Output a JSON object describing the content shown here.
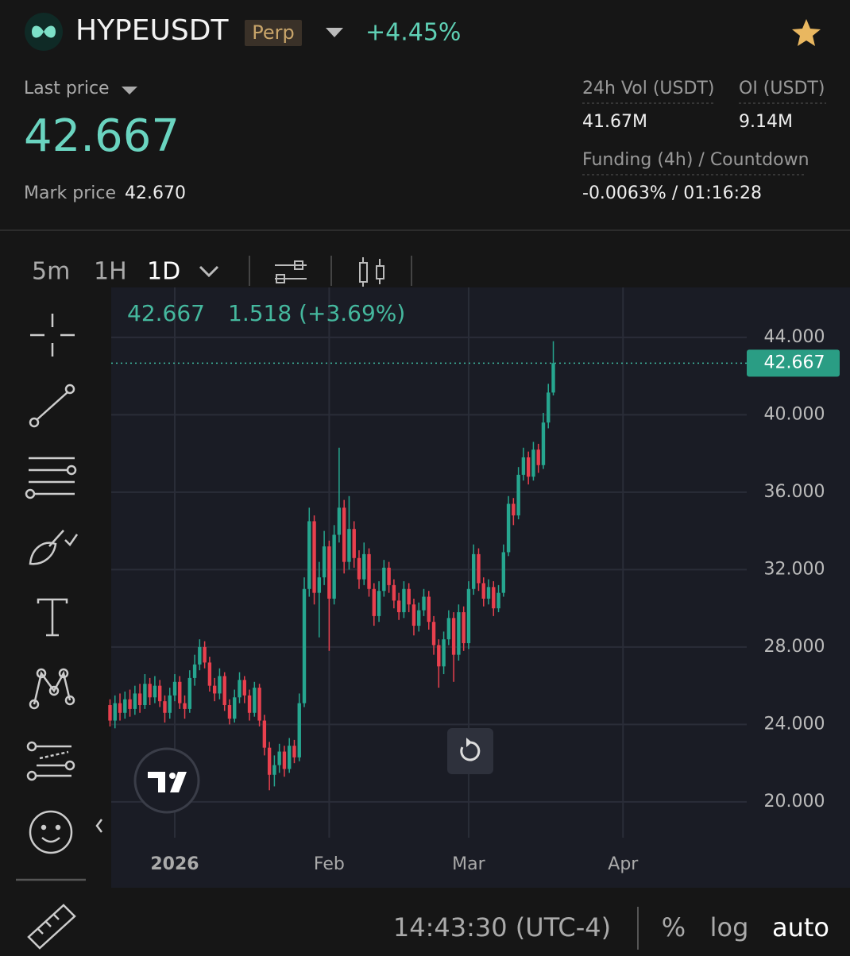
{
  "header": {
    "symbol": "HYPEUSDT",
    "badge": "Perp",
    "change": "+4.45%"
  },
  "price": {
    "last_label": "Last price",
    "last": "42.667",
    "mark_label": "Mark price",
    "mark": "42.670"
  },
  "stats": [
    {
      "label": "24h Vol (USDT)",
      "value": "41.67M"
    },
    {
      "label": "OI (USDT)",
      "value": "9.14M"
    },
    {
      "label": "Funding (4h) / Countdown",
      "value": "-0.0063%  /  01:16:28"
    }
  ],
  "intervals": [
    "5m",
    "1H",
    "1D"
  ],
  "footer": {
    "time": "14:43:30 (UTC-4)",
    "percent": "%",
    "log": "log",
    "auto": "auto"
  },
  "chart_data": {
    "type": "candlestick",
    "legend": {
      "last": "42.667",
      "change": "1.518 (+3.69%)"
    },
    "price_tag": {
      "value": 42.667,
      "label": "42.667"
    },
    "up_color": "#26a68f",
    "down_color": "#e8404e",
    "grid": true,
    "log_scale": false,
    "ylim": [
      18.15,
      46.58
    ],
    "yticks": [
      {
        "value": 20,
        "label": "20.000"
      },
      {
        "value": 24,
        "label": "24.000"
      },
      {
        "value": 28,
        "label": "28.000"
      },
      {
        "value": 32,
        "label": "32.000"
      },
      {
        "value": 36,
        "label": "36.000"
      },
      {
        "value": 40,
        "label": "40.000"
      },
      {
        "value": 44,
        "label": "44.000"
      }
    ],
    "xticks": [
      {
        "value": 13,
        "label": "2026"
      },
      {
        "value": 44,
        "label": "Feb"
      },
      {
        "value": 72,
        "label": "Mar"
      },
      {
        "value": 103,
        "label": "Apr"
      }
    ],
    "open": [
      25.0,
      24.2,
      25.1,
      24.6,
      25.3,
      24.8,
      25.6,
      25.0,
      26.1,
      25.4,
      26.0,
      25.2,
      24.6,
      25.5,
      26.2,
      25.1,
      24.8,
      26.4,
      27.1,
      28.0,
      27.2,
      26.0,
      25.6,
      26.5,
      25.0,
      24.3,
      25.4,
      26.3,
      25.5,
      24.6,
      25.9,
      24.2,
      22.8,
      21.4,
      21.9,
      22.6,
      21.7,
      22.9,
      22.3,
      25.1,
      31.0,
      34.5,
      30.8,
      31.6,
      33.2,
      30.5,
      33.8,
      35.2,
      32.4,
      34.1,
      32.6,
      31.5,
      32.8,
      31.0,
      29.6,
      30.9,
      32.1,
      31.2,
      30.4,
      29.8,
      31.0,
      30.2,
      29.1,
      29.9,
      30.6,
      29.3,
      28.1,
      27.0,
      28.4,
      29.5,
      27.6,
      29.8,
      28.2,
      31.0,
      32.8,
      31.3,
      30.5,
      31.1,
      30.0,
      30.8,
      32.9,
      35.4,
      34.8,
      36.9,
      37.8,
      36.8,
      38.2,
      37.4,
      39.6,
      41.149
    ],
    "high": [
      25.3,
      25.5,
      25.6,
      25.7,
      25.8,
      26.0,
      26.1,
      26.6,
      26.4,
      26.5,
      26.3,
      25.5,
      25.9,
      26.6,
      26.5,
      25.5,
      26.8,
      27.6,
      28.4,
      28.3,
      27.5,
      26.4,
      26.9,
      26.7,
      25.3,
      25.8,
      26.7,
      26.5,
      25.8,
      26.2,
      26.1,
      24.5,
      23.1,
      22.4,
      23.0,
      22.9,
      23.3,
      23.2,
      25.6,
      31.6,
      35.2,
      34.8,
      32.4,
      34.0,
      33.5,
      34.3,
      38.3,
      35.6,
      35.8,
      34.5,
      33.0,
      33.4,
      33.1,
      31.3,
      31.4,
      32.5,
      32.4,
      31.5,
      30.8,
      31.4,
      31.3,
      30.5,
      30.3,
      31.0,
      30.9,
      29.6,
      28.4,
      28.8,
      29.9,
      29.8,
      30.2,
      30.1,
      31.4,
      33.3,
      33.1,
      31.6,
      31.5,
      31.4,
      31.2,
      33.3,
      35.8,
      35.7,
      37.3,
      38.3,
      38.1,
      38.6,
      38.5,
      40.1,
      41.6,
      43.8
    ],
    "low": [
      23.9,
      23.8,
      24.2,
      24.3,
      24.4,
      24.5,
      24.6,
      24.8,
      25.0,
      25.1,
      24.9,
      24.1,
      24.3,
      25.2,
      24.8,
      24.3,
      24.6,
      26.0,
      26.8,
      26.9,
      25.7,
      25.2,
      25.3,
      24.7,
      24.0,
      24.1,
      25.1,
      25.1,
      24.2,
      24.4,
      23.9,
      22.4,
      20.6,
      20.8,
      21.5,
      21.3,
      21.5,
      22.0,
      22.1,
      24.9,
      30.6,
      30.2,
      28.5,
      31.2,
      27.8,
      30.2,
      33.4,
      31.8,
      32.0,
      32.1,
      31.0,
      31.2,
      30.6,
      29.1,
      29.3,
      30.6,
      30.8,
      30.0,
      29.4,
      29.5,
      29.8,
      28.6,
      28.8,
      29.6,
      28.9,
      27.6,
      25.9,
      26.6,
      28.1,
      26.2,
      27.3,
      27.8,
      27.9,
      30.7,
      30.9,
      30.1,
      30.2,
      29.6,
      29.8,
      30.6,
      32.7,
      34.3,
      34.6,
      36.6,
      36.4,
      36.6,
      37.0,
      37.2,
      39.3,
      41.0
    ],
    "close": [
      24.2,
      25.1,
      24.6,
      25.3,
      24.8,
      25.6,
      25.0,
      26.1,
      25.4,
      26.0,
      25.2,
      24.6,
      25.5,
      26.2,
      25.1,
      24.8,
      26.4,
      27.1,
      28.0,
      27.2,
      26.0,
      25.6,
      26.5,
      25.0,
      24.3,
      25.4,
      26.3,
      25.5,
      24.6,
      25.9,
      24.2,
      22.8,
      21.4,
      21.9,
      22.6,
      21.7,
      22.9,
      22.3,
      25.1,
      31.0,
      34.5,
      30.8,
      31.6,
      33.2,
      30.5,
      33.8,
      35.2,
      32.4,
      34.1,
      32.6,
      31.5,
      32.8,
      31.0,
      29.6,
      30.9,
      32.1,
      31.2,
      30.4,
      29.8,
      31.0,
      30.2,
      29.1,
      29.9,
      30.6,
      29.3,
      28.1,
      27.0,
      28.4,
      29.5,
      27.6,
      29.8,
      28.2,
      31.0,
      32.8,
      31.3,
      30.5,
      31.1,
      30.0,
      30.8,
      32.9,
      35.4,
      34.8,
      36.9,
      37.8,
      36.8,
      38.2,
      37.4,
      39.6,
      41.149,
      42.667
    ]
  }
}
